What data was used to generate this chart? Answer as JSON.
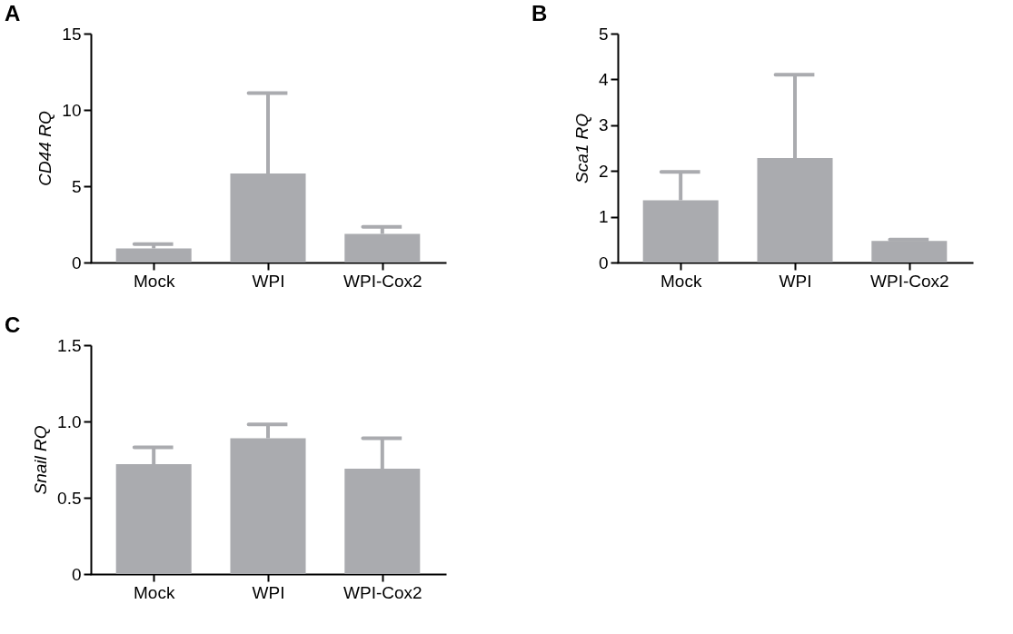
{
  "chart_data": [
    {
      "type": "bar",
      "title": "A",
      "ylabel": "CD44 RQ",
      "categories": [
        "Mock",
        "WPI",
        "WPI-Cox2"
      ],
      "values": [
        0.93,
        5.84,
        1.88
      ],
      "errors": [
        [
          0.93,
          1.2
        ],
        [
          5.84,
          11.1
        ],
        [
          1.88,
          2.34
        ]
      ],
      "colors": [
        "#aaabaf",
        "#aaabaf",
        "#aaabaf"
      ],
      "ylim": [
        0,
        15
      ],
      "yticks": [
        0,
        5,
        10,
        15
      ],
      "grid": false
    },
    {
      "type": "bar",
      "title": "B",
      "ylabel": "Sca1 RQ",
      "categories": [
        "Mock",
        "WPI",
        "WPI-Cox2"
      ],
      "values": [
        1.36,
        2.28,
        0.47
      ],
      "errors": [
        [
          1.36,
          1.98
        ],
        [
          2.28,
          4.1
        ],
        [
          0.47,
          0.5
        ]
      ],
      "colors": [
        "#aaabaf",
        "#aaabaf",
        "#aaabaf"
      ],
      "ylim": [
        0,
        5
      ],
      "yticks": [
        0,
        1,
        2,
        3,
        4,
        5
      ],
      "grid": false
    },
    {
      "type": "bar",
      "title": "C",
      "ylabel": "Snail RQ",
      "categories": [
        "Mock",
        "WPI",
        "WPI-Cox2"
      ],
      "values": [
        0.72,
        0.89,
        0.69
      ],
      "errors": [
        [
          0.72,
          0.83
        ],
        [
          0.89,
          0.98
        ],
        [
          0.69,
          0.89
        ]
      ],
      "colors": [
        "#aaabaf",
        "#aaabaf",
        "#aaabaf"
      ],
      "ylim": [
        0,
        1.5
      ],
      "yticks": [
        0,
        {
          "value": 0.5,
          "label": "0.5"
        },
        {
          "value": 1,
          "label": "1.0"
        },
        {
          "value": 1.5,
          "label": "1.5"
        }
      ],
      "grid": false
    }
  ]
}
